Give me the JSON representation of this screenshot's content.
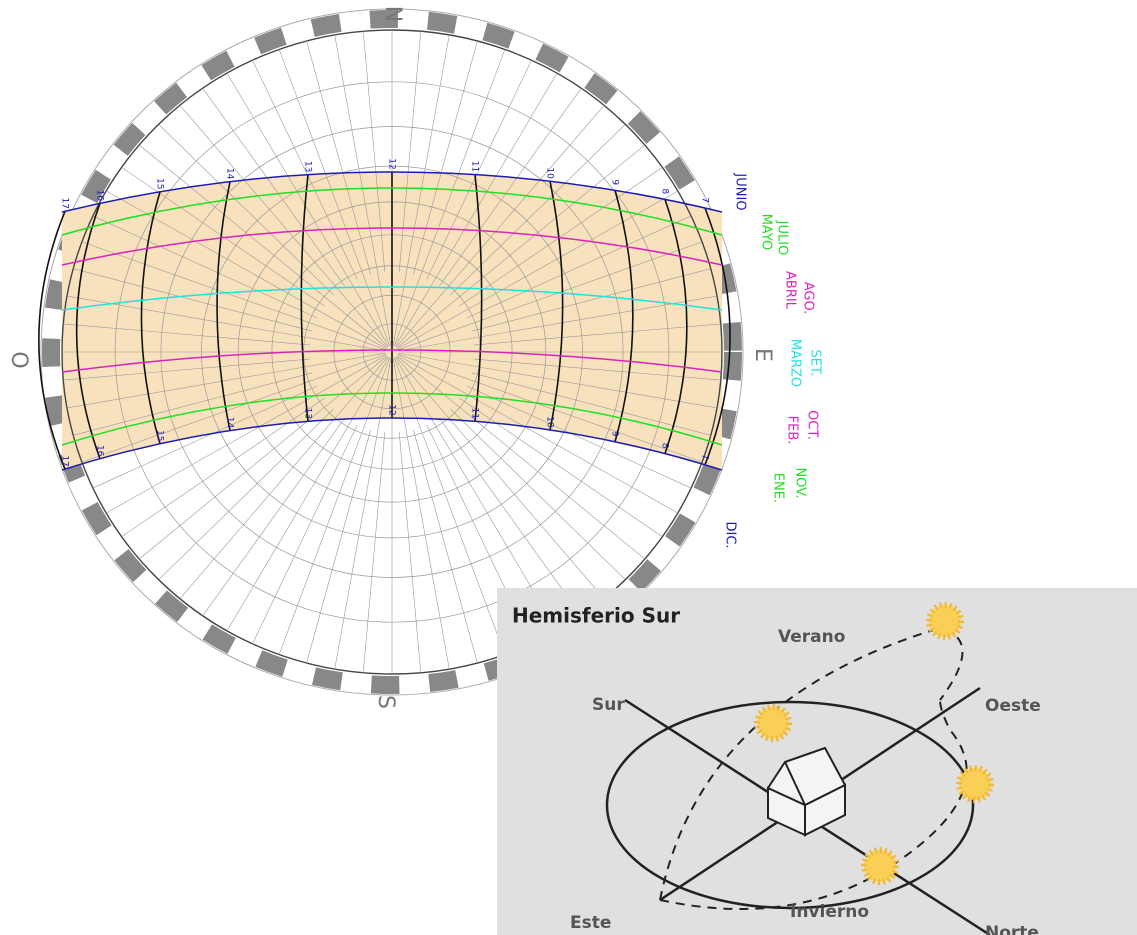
{
  "diagram": {
    "compass": {
      "north": "N",
      "south": "S",
      "east": "E",
      "west": "O"
    },
    "months": [
      {
        "labels": [
          "JUNIO"
        ],
        "color": "#1c1cb4"
      },
      {
        "labels": [
          "JULIO",
          "MAYO"
        ],
        "color": "#22dd22"
      },
      {
        "labels": [
          "AGO.",
          "ABRIL"
        ],
        "color": "#e020c0"
      },
      {
        "labels": [
          "SET.",
          "MARZO"
        ],
        "color": "#20e0e0"
      },
      {
        "labels": [
          "OCT.",
          "FEB."
        ],
        "color": "#e020c0"
      },
      {
        "labels": [
          "NOV.",
          "ENE."
        ],
        "color": "#22dd22"
      },
      {
        "labels": [
          "DIC."
        ],
        "color": "#1c1cb4"
      }
    ],
    "hour_labels": [
      "17",
      "16",
      "15",
      "14",
      "13",
      "12",
      "11",
      "10",
      "9",
      "8",
      "7"
    ],
    "inset": {
      "title": "Hemisferio Sur",
      "summer": "Verano",
      "winter": "Invierno",
      "south": "Sur",
      "west": "Oeste",
      "east": "Este",
      "north": "Norte"
    }
  }
}
